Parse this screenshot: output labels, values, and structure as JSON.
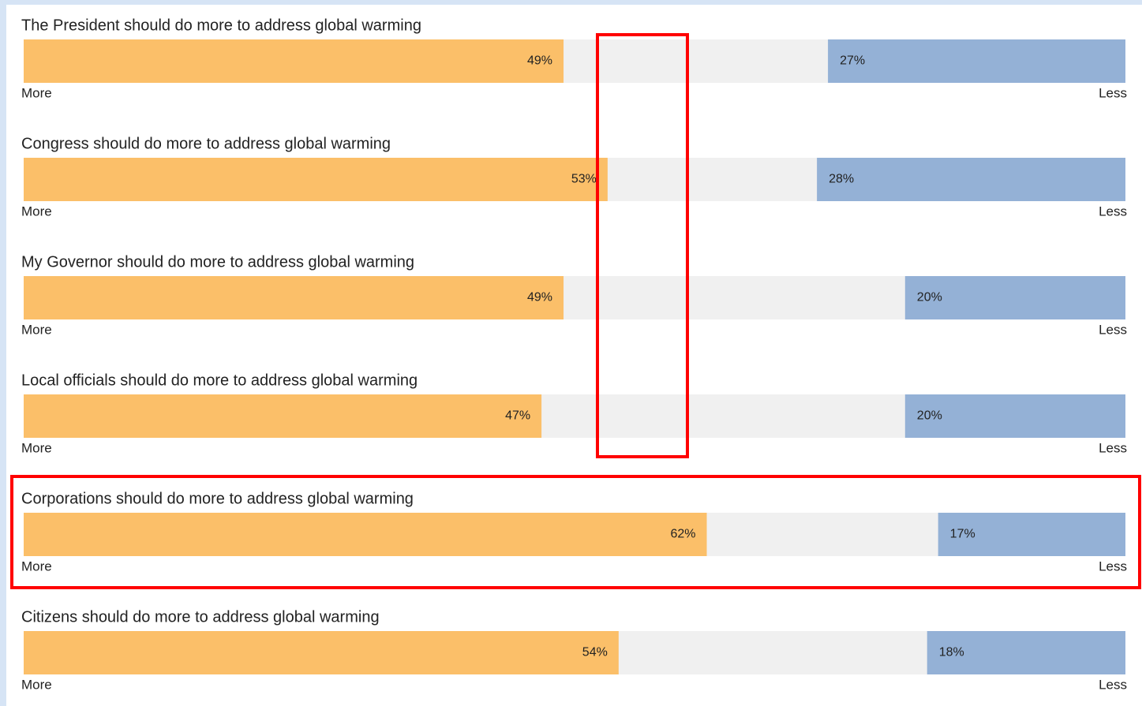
{
  "chart_data": {
    "type": "diverging_bar",
    "categories": [
      "The President should do more to address global warming",
      "Congress should do more to address global warming",
      "My Governor should do more to address global warming",
      "Local officials should do more to address global warming",
      "Corporations should do more to address global warming",
      "Citizens should do more to address global warming"
    ],
    "series": [
      {
        "name": "More",
        "color": "#fbbf69",
        "values": [
          49,
          53,
          49,
          47,
          62,
          54
        ],
        "value_labels": [
          "49%",
          "53%",
          "49%",
          "47%",
          "62%",
          "54%"
        ]
      },
      {
        "name": "Less",
        "color": "#94b1d6",
        "values": [
          27,
          28,
          20,
          20,
          17,
          18
        ],
        "value_labels": [
          "27%",
          "28%",
          "20%",
          "20%",
          "17%",
          "18%"
        ]
      }
    ],
    "xlim": [
      0,
      100
    ]
  }
}
